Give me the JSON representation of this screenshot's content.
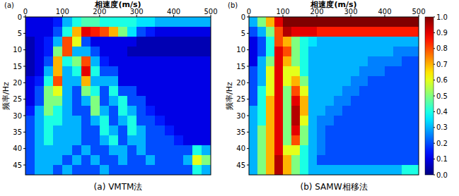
{
  "chart_data": [
    {
      "type": "heatmap",
      "title": "(a) VMTM法",
      "panel_label": "(a)",
      "xlabel": "相速度(m/s)",
      "ylabel": "频率/Hz",
      "xlim": [
        0,
        500
      ],
      "ylim": [
        0,
        48
      ],
      "xticks": [
        0,
        100,
        200,
        300,
        400,
        500
      ],
      "yticks": [
        0,
        5,
        10,
        15,
        20,
        25,
        30,
        35,
        40,
        45
      ],
      "grid": false,
      "colorbar_range": [
        0,
        1
      ],
      "x_bins": [
        0,
        25,
        50,
        75,
        100,
        125,
        150,
        175,
        200,
        225,
        250,
        275,
        300,
        325,
        350,
        375,
        400,
        425,
        450,
        475,
        500
      ],
      "y_bins": [
        0,
        3,
        6,
        9,
        12,
        15,
        18,
        21,
        24,
        27,
        30,
        33,
        36,
        39,
        42,
        45,
        48
      ],
      "cells": [
        [
          0.1,
          0.1,
          0.1,
          0.15,
          0.3,
          0.4,
          0.45,
          0.45,
          0.4,
          0.4,
          0.4,
          0.4,
          0.35,
          0.35,
          0.3,
          0.3,
          0.3,
          0.3,
          0.3,
          0.3
        ],
        [
          0.1,
          0.1,
          0.1,
          0.2,
          0.4,
          0.7,
          0.9,
          0.85,
          0.8,
          0.7,
          0.5,
          0.35,
          0.2,
          0.15,
          0.1,
          0.1,
          0.1,
          0.1,
          0.1,
          0.1
        ],
        [
          0.05,
          0.1,
          0.15,
          0.3,
          0.8,
          0.6,
          0.2,
          0.1,
          0.1,
          0.1,
          0.1,
          0.1,
          0.05,
          0.05,
          0.05,
          0.05,
          0.05,
          0.05,
          0.05,
          0.05
        ],
        [
          0.05,
          0.1,
          0.15,
          0.5,
          0.8,
          0.3,
          0.3,
          0.2,
          0.1,
          0.1,
          0.1,
          0.05,
          0.05,
          0.05,
          0.05,
          0.05,
          0.05,
          0.05,
          0.05,
          0.05
        ],
        [
          0.05,
          0.1,
          0.2,
          0.7,
          0.4,
          0.5,
          0.8,
          0.3,
          0.15,
          0.1,
          0.1,
          0.1,
          0.1,
          0.1,
          0.1,
          0.1,
          0.1,
          0.1,
          0.1,
          0.1
        ],
        [
          0.05,
          0.1,
          0.3,
          0.7,
          0.3,
          0.4,
          0.9,
          0.4,
          0.2,
          0.2,
          0.1,
          0.1,
          0.1,
          0.1,
          0.1,
          0.1,
          0.1,
          0.1,
          0.1,
          0.1
        ],
        [
          0.1,
          0.15,
          0.4,
          0.8,
          0.3,
          0.3,
          0.7,
          0.3,
          0.3,
          0.3,
          0.1,
          0.1,
          0.1,
          0.1,
          0.1,
          0.1,
          0.1,
          0.1,
          0.1,
          0.1
        ],
        [
          0.1,
          0.2,
          0.5,
          0.6,
          0.3,
          0.2,
          0.5,
          0.4,
          0.2,
          0.4,
          0.2,
          0.2,
          0.1,
          0.1,
          0.1,
          0.1,
          0.1,
          0.1,
          0.1,
          0.1
        ],
        [
          0.1,
          0.2,
          0.5,
          0.5,
          0.3,
          0.2,
          0.3,
          0.5,
          0.2,
          0.3,
          0.4,
          0.2,
          0.2,
          0.1,
          0.1,
          0.1,
          0.1,
          0.1,
          0.1,
          0.1
        ],
        [
          0.15,
          0.3,
          0.5,
          0.4,
          0.3,
          0.2,
          0.2,
          0.5,
          0.3,
          0.2,
          0.4,
          0.3,
          0.2,
          0.15,
          0.1,
          0.1,
          0.1,
          0.1,
          0.1,
          0.1
        ],
        [
          0.2,
          0.3,
          0.4,
          0.4,
          0.3,
          0.3,
          0.2,
          0.3,
          0.4,
          0.2,
          0.3,
          0.4,
          0.2,
          0.2,
          0.15,
          0.1,
          0.1,
          0.1,
          0.1,
          0.1
        ],
        [
          0.2,
          0.3,
          0.4,
          0.3,
          0.3,
          0.3,
          0.2,
          0.2,
          0.4,
          0.3,
          0.2,
          0.4,
          0.3,
          0.2,
          0.2,
          0.15,
          0.1,
          0.1,
          0.1,
          0.1
        ],
        [
          0.2,
          0.3,
          0.4,
          0.3,
          0.3,
          0.3,
          0.2,
          0.2,
          0.3,
          0.4,
          0.2,
          0.3,
          0.3,
          0.2,
          0.2,
          0.2,
          0.15,
          0.1,
          0.1,
          0.1
        ],
        [
          0.2,
          0.3,
          0.3,
          0.3,
          0.3,
          0.2,
          0.3,
          0.2,
          0.2,
          0.3,
          0.3,
          0.2,
          0.3,
          0.2,
          0.2,
          0.2,
          0.2,
          0.2,
          0.4,
          0.3
        ],
        [
          0.2,
          0.3,
          0.3,
          0.3,
          0.2,
          0.3,
          0.2,
          0.3,
          0.2,
          0.2,
          0.3,
          0.2,
          0.2,
          0.3,
          0.2,
          0.2,
          0.2,
          0.3,
          0.6,
          0.5
        ],
        [
          0.2,
          0.3,
          0.3,
          0.2,
          0.3,
          0.2,
          0.2,
          0.2,
          0.3,
          0.2,
          0.2,
          0.2,
          0.2,
          0.2,
          0.2,
          0.2,
          0.2,
          0.2,
          0.4,
          0.3
        ]
      ]
    },
    {
      "type": "heatmap",
      "title": "(b) SAMW相移法",
      "panel_label": "(b)",
      "xlabel": "相速度(m/s)",
      "ylabel": "频率/Hz",
      "xlim": [
        0,
        500
      ],
      "ylim": [
        0,
        48
      ],
      "xticks": [
        0,
        100,
        200,
        300,
        400,
        500
      ],
      "yticks": [
        0,
        5,
        10,
        15,
        20,
        25,
        30,
        35,
        40,
        45
      ],
      "grid": false,
      "colorbar_range": [
        0,
        1
      ],
      "colorbar_ticks": [
        {
          "value": 0,
          "label": "0.0"
        },
        0.1,
        0.2,
        0.3,
        0.4,
        0.5,
        0.6,
        0.7,
        0.8,
        0.9,
        {
          "value": 1,
          "label": "1.0"
        }
      ],
      "x_bins": [
        0,
        25,
        50,
        75,
        100,
        125,
        150,
        175,
        200,
        225,
        250,
        275,
        300,
        325,
        350,
        375,
        400,
        425,
        450,
        475,
        500
      ],
      "y_bins": [
        0,
        3,
        6,
        9,
        12,
        15,
        18,
        21,
        24,
        27,
        30,
        33,
        36,
        39,
        42,
        45,
        48
      ],
      "cells": [
        [
          0.3,
          0.5,
          0.7,
          0.9,
          1,
          1,
          1,
          1,
          1,
          1,
          1,
          1,
          1,
          1,
          1,
          1,
          1,
          1,
          1,
          1
        ],
        [
          0.2,
          0.3,
          0.5,
          0.8,
          0.95,
          0.9,
          0.9,
          0.9,
          0.85,
          0.85,
          0.85,
          0.85,
          0.85,
          0.85,
          0.85,
          0.85,
          0.85,
          0.85,
          0.85,
          0.85
        ],
        [
          0.1,
          0.2,
          0.4,
          0.8,
          0.7,
          0.5,
          0.4,
          0.35,
          0.3,
          0.3,
          0.3,
          0.3,
          0.3,
          0.3,
          0.3,
          0.3,
          0.3,
          0.3,
          0.3,
          0.3
        ],
        [
          0.1,
          0.2,
          0.4,
          0.9,
          0.8,
          0.5,
          0.4,
          0.3,
          0.3,
          0.3,
          0.3,
          0.3,
          0.3,
          0.3,
          0.3,
          0.3,
          0.3,
          0.25,
          0.25,
          0.25
        ],
        [
          0.1,
          0.3,
          0.5,
          0.9,
          0.7,
          0.5,
          0.4,
          0.3,
          0.3,
          0.3,
          0.3,
          0.3,
          0.3,
          0.3,
          0.25,
          0.25,
          0.25,
          0.25,
          0.2,
          0.2
        ],
        [
          0.2,
          0.3,
          0.6,
          0.9,
          0.6,
          0.6,
          0.4,
          0.3,
          0.3,
          0.3,
          0.3,
          0.3,
          0.3,
          0.25,
          0.25,
          0.25,
          0.2,
          0.2,
          0.2,
          0.2
        ],
        [
          0.2,
          0.3,
          0.6,
          0.9,
          0.6,
          0.7,
          0.5,
          0.3,
          0.3,
          0.3,
          0.3,
          0.3,
          0.25,
          0.25,
          0.2,
          0.2,
          0.2,
          0.2,
          0.2,
          0.2
        ],
        [
          0.2,
          0.4,
          0.6,
          0.9,
          0.5,
          0.8,
          0.6,
          0.3,
          0.3,
          0.3,
          0.3,
          0.25,
          0.25,
          0.2,
          0.2,
          0.2,
          0.2,
          0.2,
          0.2,
          0.2
        ],
        [
          0.2,
          0.4,
          0.7,
          0.9,
          0.5,
          0.9,
          0.7,
          0.3,
          0.3,
          0.3,
          0.25,
          0.25,
          0.2,
          0.2,
          0.2,
          0.2,
          0.2,
          0.2,
          0.2,
          0.2
        ],
        [
          0.3,
          0.4,
          0.7,
          0.9,
          0.5,
          0.95,
          0.7,
          0.3,
          0.3,
          0.25,
          0.25,
          0.2,
          0.2,
          0.2,
          0.2,
          0.2,
          0.2,
          0.2,
          0.2,
          0.2
        ],
        [
          0.3,
          0.4,
          0.7,
          0.9,
          0.5,
          0.95,
          0.6,
          0.3,
          0.25,
          0.25,
          0.2,
          0.2,
          0.2,
          0.2,
          0.2,
          0.2,
          0.2,
          0.2,
          0.2,
          0.2
        ],
        [
          0.3,
          0.5,
          0.7,
          0.9,
          0.5,
          0.9,
          0.5,
          0.3,
          0.25,
          0.2,
          0.2,
          0.2,
          0.2,
          0.2,
          0.2,
          0.2,
          0.2,
          0.2,
          0.2,
          0.2
        ],
        [
          0.3,
          0.5,
          0.7,
          0.9,
          0.5,
          0.8,
          0.5,
          0.3,
          0.25,
          0.2,
          0.2,
          0.2,
          0.2,
          0.2,
          0.2,
          0.2,
          0.2,
          0.2,
          0.2,
          0.2
        ],
        [
          0.3,
          0.5,
          0.7,
          0.9,
          0.6,
          0.6,
          0.4,
          0.3,
          0.25,
          0.2,
          0.2,
          0.2,
          0.2,
          0.2,
          0.2,
          0.2,
          0.2,
          0.2,
          0.2,
          0.2
        ],
        [
          0.3,
          0.5,
          0.7,
          0.95,
          0.7,
          0.5,
          0.4,
          0.3,
          0.2,
          0.2,
          0.2,
          0.2,
          0.2,
          0.2,
          0.2,
          0.2,
          0.2,
          0.2,
          0.2,
          0.2
        ],
        [
          0.3,
          0.5,
          0.7,
          0.95,
          0.7,
          0.5,
          0.4,
          0.3,
          0.3,
          0.3,
          0.3,
          0.3,
          0.3,
          0.3,
          0.3,
          0.3,
          0.3,
          0.3,
          0.4,
          0.4
        ]
      ]
    }
  ]
}
